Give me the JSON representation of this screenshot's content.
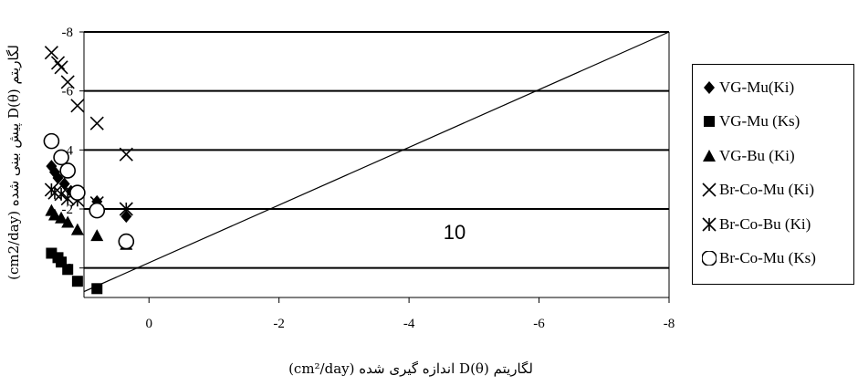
{
  "chart_data": {
    "type": "scatter",
    "xlabel": "لگاریتم D(θ) اندازه گیری شده (cm²/day)",
    "ylabel": "لگاریتم D(θ) پیش بینی شده (cm2/day)",
    "xlim": [
      1,
      -8
    ],
    "ylim": [
      1,
      -8
    ],
    "x_ticks": [
      0,
      -2,
      -4,
      -6,
      -8
    ],
    "y_ticks": [
      0,
      -2,
      -4,
      -6,
      -8
    ],
    "grid": "horizontal",
    "legend_position": "right",
    "annotation": "10",
    "reference_line": {
      "x": [
        1,
        -8
      ],
      "y": [
        0.8,
        -8
      ]
    },
    "series": [
      {
        "name": "VG-Mu(Ki)",
        "marker": "diamond",
        "x": [
          0.35,
          0.8,
          1.2,
          1.3,
          1.4,
          1.45,
          1.5
        ],
        "y": [
          -1.75,
          -2.25,
          -2.6,
          -2.85,
          -3.05,
          -3.25,
          -3.45
        ]
      },
      {
        "name": "VG-Mu (Ks)",
        "marker": "square",
        "x": [
          0.8,
          1.1,
          1.25,
          1.35,
          1.4,
          1.5
        ],
        "y": [
          0.7,
          0.45,
          0.05,
          -0.2,
          -0.35,
          -0.5
        ]
      },
      {
        "name": "VG-Bu (Ki)",
        "marker": "triangle",
        "x": [
          0.35,
          0.8,
          1.1,
          1.25,
          1.35,
          1.45,
          1.5
        ],
        "y": [
          -0.8,
          -1.1,
          -1.3,
          -1.55,
          -1.7,
          -1.8,
          -1.95
        ]
      },
      {
        "name": "Br-Co-Mu (Ki)",
        "marker": "x",
        "x": [
          0.35,
          0.8,
          1.1,
          1.25,
          1.35,
          1.4,
          1.5
        ],
        "y": [
          -3.85,
          -4.9,
          -5.5,
          -6.3,
          -6.8,
          -6.95,
          -7.3
        ]
      },
      {
        "name": "Br-Co-Bu (Ki)",
        "marker": "asterisk",
        "x": [
          0.35,
          0.8,
          1.1,
          1.25,
          1.35,
          1.45,
          1.5
        ],
        "y": [
          -2.0,
          -2.2,
          -2.3,
          -2.35,
          -2.5,
          -2.55,
          -2.65
        ]
      },
      {
        "name": "Br-Co-Mu (Ks)",
        "marker": "circle",
        "x": [
          0.35,
          0.8,
          1.1,
          1.25,
          1.35,
          1.5
        ],
        "y": [
          -0.9,
          -1.95,
          -2.55,
          -3.3,
          -3.75,
          -4.3
        ]
      }
    ]
  }
}
